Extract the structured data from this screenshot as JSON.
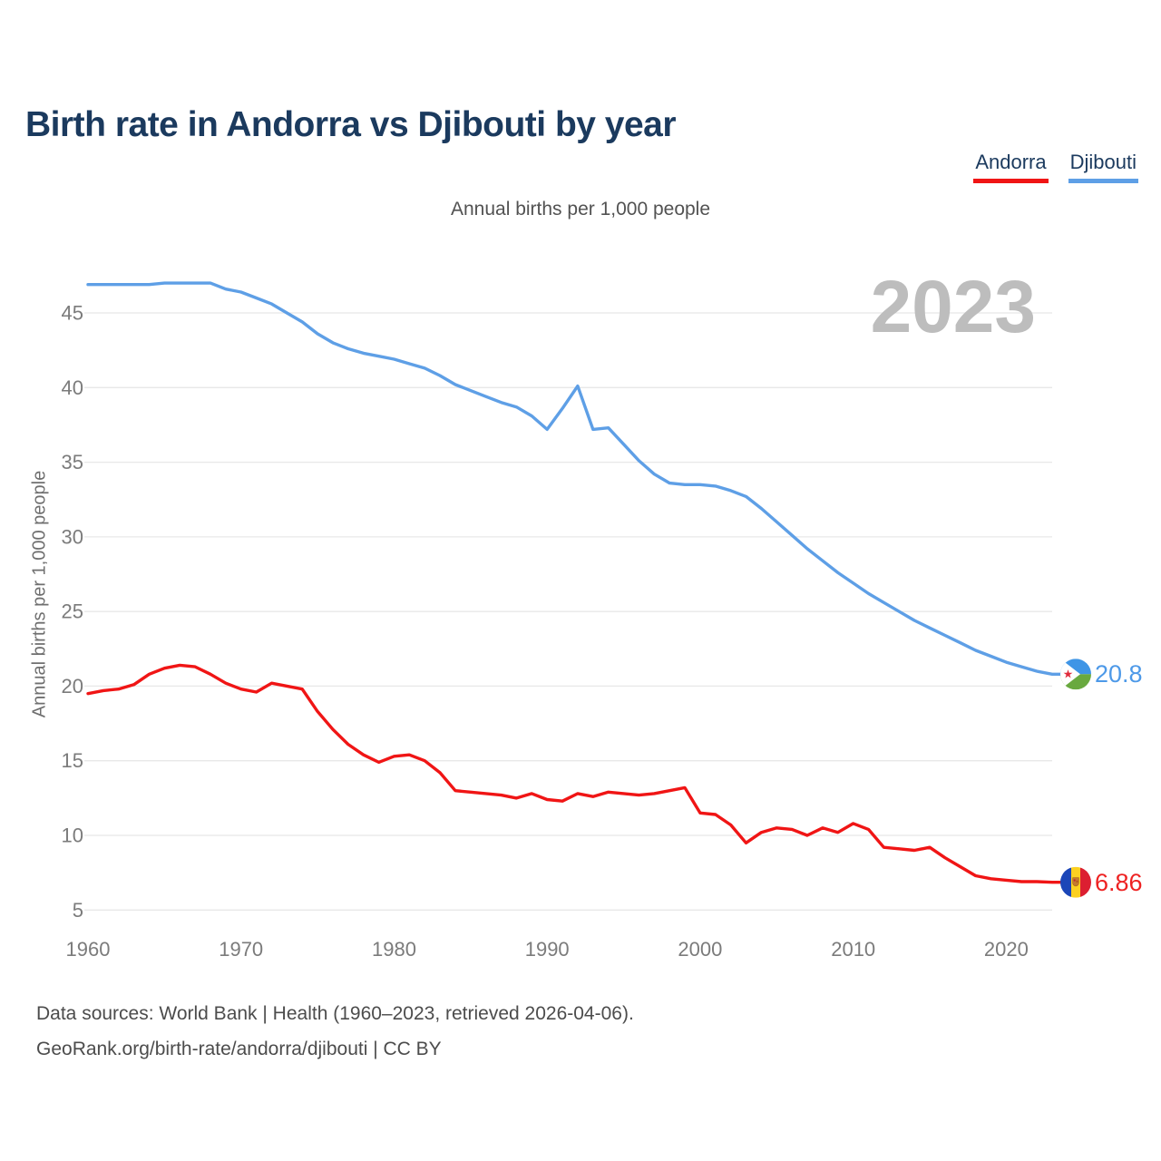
{
  "page": {
    "title": "Birth rate in Andorra vs Djibouti by year",
    "subtitle": "Annual births per 1,000 people",
    "watermark_year": "2023",
    "footer_line1": "Data sources: World Bank | Health (1960–2023, retrieved 2026-04-06).",
    "footer_line2": "GeoRank.org/birth-rate/andorra/djibouti | CC BY"
  },
  "legend": {
    "andorra": {
      "label": "Andorra",
      "color": "#F01515"
    },
    "djibouti": {
      "label": "Djibouti",
      "color": "#5E9FE6"
    }
  },
  "end_labels": {
    "djibouti": {
      "value": "20.8",
      "color": "#4D99E8"
    },
    "andorra": {
      "value": "6.86",
      "color": "#EE2222"
    }
  },
  "colors": {
    "grid": "#E8E8E8",
    "tick_text": "#7B7B7B",
    "watermark": "#BDBDBD",
    "title_navy": "#1B3A5E"
  },
  "chart_data": {
    "type": "line",
    "title": "Birth rate in Andorra vs Djibouti by year",
    "xlabel": "",
    "ylabel": "Annual births per 1,000 people",
    "x_start": 1960,
    "x_end": 2023,
    "xticks": [
      1960,
      1970,
      1980,
      1990,
      2000,
      2010,
      2020
    ],
    "yticks": [
      5,
      10,
      15,
      20,
      25,
      30,
      35,
      40,
      45
    ],
    "ylim": [
      4.5,
      47.8
    ],
    "grid": "horizontal",
    "legend_position": "top-right",
    "years": [
      1960,
      1961,
      1962,
      1963,
      1964,
      1965,
      1966,
      1967,
      1968,
      1969,
      1970,
      1971,
      1972,
      1973,
      1974,
      1975,
      1976,
      1977,
      1978,
      1979,
      1980,
      1981,
      1982,
      1983,
      1984,
      1985,
      1986,
      1987,
      1988,
      1989,
      1990,
      1991,
      1992,
      1993,
      1994,
      1995,
      1996,
      1997,
      1998,
      1999,
      2000,
      2001,
      2002,
      2003,
      2004,
      2005,
      2006,
      2007,
      2008,
      2009,
      2010,
      2011,
      2012,
      2013,
      2014,
      2015,
      2016,
      2017,
      2018,
      2019,
      2020,
      2021,
      2022,
      2023
    ],
    "series": [
      {
        "name": "Djibouti",
        "color": "#5E9FE6",
        "end_label": "20.8",
        "values": [
          46.9,
          46.9,
          46.9,
          46.9,
          46.9,
          47.0,
          47.0,
          47.0,
          47.0,
          46.6,
          46.4,
          46.0,
          45.6,
          45.0,
          44.4,
          43.6,
          43.0,
          42.6,
          42.3,
          42.1,
          41.9,
          41.6,
          41.3,
          40.8,
          40.2,
          39.8,
          39.4,
          39.0,
          38.7,
          38.1,
          37.2,
          38.6,
          40.1,
          37.2,
          37.3,
          36.2,
          35.1,
          34.2,
          33.6,
          33.5,
          33.5,
          33.4,
          33.1,
          32.7,
          31.9,
          31.0,
          30.1,
          29.2,
          28.4,
          27.6,
          26.9,
          26.2,
          25.6,
          25.0,
          24.4,
          23.9,
          23.4,
          22.9,
          22.4,
          22.0,
          21.6,
          21.3,
          21.0,
          20.8
        ]
      },
      {
        "name": "Andorra",
        "color": "#F01515",
        "end_label": "6.86",
        "values": [
          19.5,
          19.7,
          19.8,
          20.1,
          20.8,
          21.2,
          21.4,
          21.3,
          20.8,
          20.2,
          19.8,
          19.6,
          20.2,
          20.0,
          19.8,
          18.3,
          17.1,
          16.1,
          15.4,
          14.9,
          15.3,
          15.4,
          15.0,
          14.2,
          13.0,
          12.9,
          12.8,
          12.7,
          12.5,
          12.8,
          12.4,
          12.3,
          12.8,
          12.6,
          12.9,
          12.8,
          12.7,
          12.8,
          13.0,
          13.2,
          11.5,
          11.4,
          10.7,
          9.5,
          10.2,
          10.5,
          10.4,
          10.0,
          10.5,
          10.2,
          10.8,
          10.4,
          9.2,
          9.1,
          9.0,
          9.2,
          8.5,
          7.9,
          7.3,
          7.1,
          7.0,
          6.9,
          6.9,
          6.86
        ]
      }
    ]
  }
}
